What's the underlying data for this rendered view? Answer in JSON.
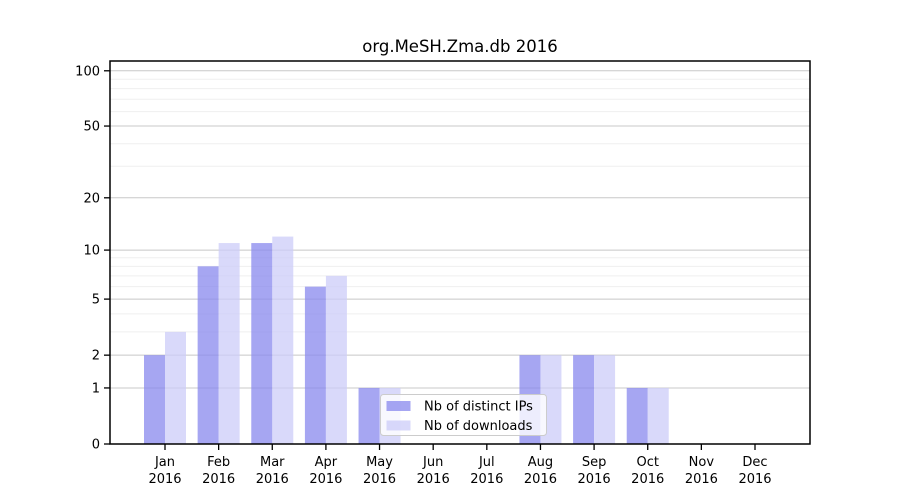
{
  "chart_data": {
    "type": "bar",
    "title": "org.MeSH.Zma.db 2016",
    "categories": [
      "Jan 2016",
      "Feb 2016",
      "Mar 2016",
      "Apr 2016",
      "May 2016",
      "Jun 2016",
      "Jul 2016",
      "Aug 2016",
      "Sep 2016",
      "Oct 2016",
      "Nov 2016",
      "Dec 2016"
    ],
    "series": [
      {
        "name": "Nb of distinct IPs",
        "color": "#8888ee",
        "values": [
          2,
          8,
          11,
          6,
          1,
          0,
          0,
          2,
          2,
          1,
          0,
          0
        ]
      },
      {
        "name": "Nb of downloads",
        "color": "#ccccf8",
        "values": [
          3,
          11,
          12,
          7,
          1,
          0,
          0,
          2,
          2,
          1,
          0,
          0
        ]
      }
    ],
    "bar_opacity": 0.75,
    "xlabel": "",
    "ylabel": "",
    "y_scale": "log1p",
    "ylim": [
      0,
      113
    ],
    "y_ticks": [
      0,
      1,
      2,
      5,
      10,
      20,
      50,
      100
    ],
    "y_minor_ticks": [
      3,
      4,
      6,
      7,
      8,
      9,
      30,
      40,
      60,
      70,
      80,
      90
    ],
    "grid": true,
    "legend_position": "inside-lower-center",
    "colors": {
      "grid_major": "#c8c8c8",
      "grid_minor": "#efefef",
      "axis": "#000000",
      "legend_bg": "#ffffff",
      "legend_border": "#cccccc"
    }
  }
}
